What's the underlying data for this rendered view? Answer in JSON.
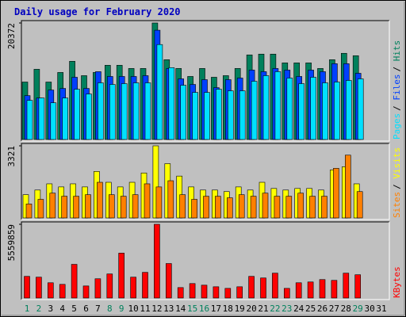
{
  "chart_data": [
    {
      "type": "bar",
      "title": "Daily usage for February 2020",
      "title_color": "#0000c0",
      "ylim": [
        0,
        20372
      ],
      "yticks": [
        20372
      ],
      "legend_separator": "/",
      "series": [
        {
          "name": "Hits",
          "color": "#00805c",
          "values": [
            10046,
            12279,
            10046,
            11721,
            13674,
            11163,
            11721,
            12977,
            12977,
            12419,
            12419,
            20372,
            13953,
            12419,
            11023,
            12419,
            10884,
            11163,
            12419,
            14791,
            14930,
            14930,
            13395,
            13395,
            13395,
            12419,
            13953,
            15070,
            14651,
            null,
            null
          ]
        },
        {
          "name": "Files",
          "color": "#0040ff",
          "values": [
            7673,
            7254,
            8649,
            8928,
            10881,
            8928,
            11858,
            11021,
            11021,
            11021,
            11160,
            19112,
            12416,
            10602,
            9626,
            10463,
            9068,
            10463,
            10742,
            12137,
            11858,
            12416,
            12137,
            11021,
            12137,
            11858,
            13253,
            13253,
            11579,
            null,
            null
          ]
        },
        {
          "name": "Pages",
          "color": "#00e0ff",
          "values": [
            6836,
            7254,
            6417,
            7254,
            8789,
            7952,
            9905,
            9626,
            9765,
            9905,
            9905,
            16601,
            12555,
            9486,
            8231,
            8231,
            8789,
            8510,
            8510,
            10184,
            11160,
            11858,
            10742,
            9765,
            10881,
            9905,
            10044,
            10323,
            10602,
            null,
            null
          ]
        }
      ]
    },
    {
      "type": "bar",
      "ylim": [
        0,
        3321
      ],
      "yticks": [
        3321
      ],
      "legend_separator": "/",
      "series": [
        {
          "name": "Visits",
          "color": "#ffff00",
          "values": [
            1071,
            1285,
            1571,
            1428,
            1571,
            1428,
            2142,
            1642,
            1428,
            1642,
            2071,
            3321,
            2499,
            1928,
            1428,
            1285,
            1285,
            1214,
            1428,
            1285,
            1642,
            1357,
            1285,
            1357,
            1357,
            1285,
            2213,
            2356,
            1571,
            null,
            null
          ]
        },
        {
          "name": "Sites",
          "color": "#ff8000",
          "values": [
            643,
            857,
            1142,
            1000,
            1000,
            1071,
            1642,
            1071,
            1000,
            1071,
            1571,
            1428,
            1714,
            1071,
            857,
            1000,
            1000,
            928,
            1071,
            1000,
            1142,
            1000,
            1000,
            1142,
            1000,
            1000,
            2285,
            2892,
            1214,
            null,
            null
          ]
        }
      ]
    },
    {
      "type": "bar",
      "ylim": [
        0,
        5559859
      ],
      "yticks": [
        5559859
      ],
      "categories": [
        "1",
        "2",
        "3",
        "4",
        "5",
        "6",
        "7",
        "8",
        "9",
        "10",
        "11",
        "12",
        "13",
        "14",
        "15",
        "16",
        "17",
        "18",
        "19",
        "20",
        "21",
        "22",
        "23",
        "24",
        "25",
        "26",
        "27",
        "28",
        "29",
        "30",
        "31"
      ],
      "category_colors": [
        "#00805c",
        "#00805c",
        "#000000",
        "#000000",
        "#000000",
        "#000000",
        "#000000",
        "#00805c",
        "#00805c",
        "#000000",
        "#000000",
        "#000000",
        "#000000",
        "#000000",
        "#00805c",
        "#00805c",
        "#000000",
        "#000000",
        "#000000",
        "#000000",
        "#000000",
        "#00805c",
        "#00805c",
        "#000000",
        "#000000",
        "#000000",
        "#000000",
        "#000000",
        "#00805c",
        "#000000",
        "#000000"
      ],
      "series": [
        {
          "name": "KBytes",
          "color": "#ff0000",
          "values": [
            1631691,
            1571258,
            1148227,
            1027361,
            2538186,
            906495,
            1450392,
            1812990,
            3384248,
            1571258,
            1933856,
            5559859,
            2598619,
            785629,
            1087794,
            966928,
            846062,
            725196,
            846062,
            1631691,
            1510825,
            1873423,
            725196,
            1148227,
            1208660,
            1389959,
            1329526,
            1873423,
            1752557,
            null,
            null
          ]
        }
      ]
    }
  ]
}
